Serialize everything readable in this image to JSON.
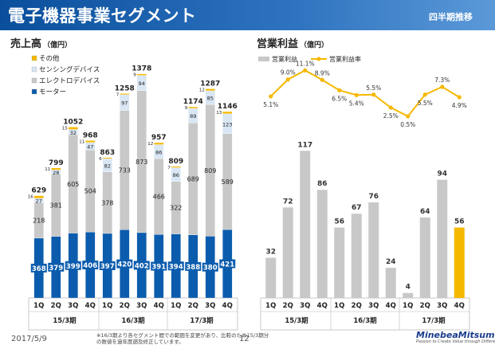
{
  "header": {
    "title": "電子機器事業セグメント",
    "badge": "四半期推移"
  },
  "footer": {
    "date": "2017/5/9",
    "page": "12",
    "note_line1": "※16/3期より各セグメント間での範囲を変更があり、比較のため15/3期分",
    "note_line2": "の数値を過年度遡及修正しています。",
    "logo_name": "MinebeaMitsumi",
    "logo_tagline": "Passion to Create Value through Difference"
  },
  "colors": {
    "motor": "#0b5cad",
    "electro": "#c8c8c8",
    "sensing": "#d9e6f4",
    "other": "#f5b800",
    "profit_bar": "#c8c8c8",
    "profit_bar_highlight": "#f5b800",
    "margin_line": "#f5b800"
  },
  "chart_data": [
    {
      "type": "bar",
      "stacked": true,
      "title": "売上高",
      "unit": "（億円）",
      "categories": [
        "1Q",
        "2Q",
        "3Q",
        "4Q",
        "1Q",
        "2Q",
        "3Q",
        "4Q",
        "1Q",
        "2Q",
        "3Q",
        "4Q"
      ],
      "groups": [
        {
          "label": "15/3期",
          "count": 4
        },
        {
          "label": "16/3期",
          "count": 4
        },
        {
          "label": "17/3期",
          "count": 4
        }
      ],
      "series": [
        {
          "name": "モーター",
          "color": "#0b5cad",
          "values": [
            368,
            379,
            399,
            406,
            397,
            420,
            402,
            391,
            394,
            388,
            380,
            421
          ]
        },
        {
          "name": "エレクトロデバイス",
          "color": "#c8c8c8",
          "values": [
            218,
            381,
            605,
            504,
            378,
            733,
            873,
            466,
            322,
            689,
            809,
            589
          ]
        },
        {
          "name": "センシングデバイス",
          "color": "#d9e6f4",
          "values": [
            27,
            28,
            32,
            47,
            82,
            97,
            94,
            86,
            86,
            89,
            85,
            123
          ]
        },
        {
          "name": "その他",
          "color": "#f5b800",
          "values": [
            16,
            11,
            15,
            11,
            6,
            7,
            9,
            12,
            7,
            9,
            12,
            13
          ]
        }
      ],
      "totals": [
        629,
        799,
        1052,
        968,
        863,
        1258,
        1378,
        957,
        809,
        1174,
        1287,
        1146
      ],
      "ylim": [
        0,
        1450
      ]
    },
    {
      "type": "bar+line",
      "title": "営業利益",
      "unit": "（億円）",
      "categories": [
        "1Q",
        "2Q",
        "3Q",
        "4Q",
        "1Q",
        "2Q",
        "3Q",
        "4Q",
        "1Q",
        "2Q",
        "3Q",
        "4Q"
      ],
      "groups": [
        {
          "label": "15/3期",
          "count": 4
        },
        {
          "label": "16/3期",
          "count": 4
        },
        {
          "label": "17/3期",
          "count": 4
        }
      ],
      "bar_series": {
        "name": "営業利益",
        "values": [
          32,
          72,
          117,
          86,
          56,
          67,
          76,
          24,
          4,
          64,
          94,
          56
        ]
      },
      "line_series": {
        "name": "営業利益率",
        "values": [
          5.1,
          9.0,
          11.1,
          8.9,
          6.5,
          5.4,
          5.5,
          2.5,
          0.5,
          5.5,
          7.3,
          4.9
        ],
        "labels": [
          "5.1%",
          "9.0%",
          "11.1%",
          "8.9%",
          "6.5%",
          "5.4%",
          "5.5%",
          "2.5%",
          "0.5%",
          "5.5%",
          "7.3%",
          "4.9%"
        ]
      },
      "highlight_index": 11,
      "ylim": [
        0,
        190
      ],
      "line_ylim": [
        -10,
        13
      ]
    }
  ]
}
